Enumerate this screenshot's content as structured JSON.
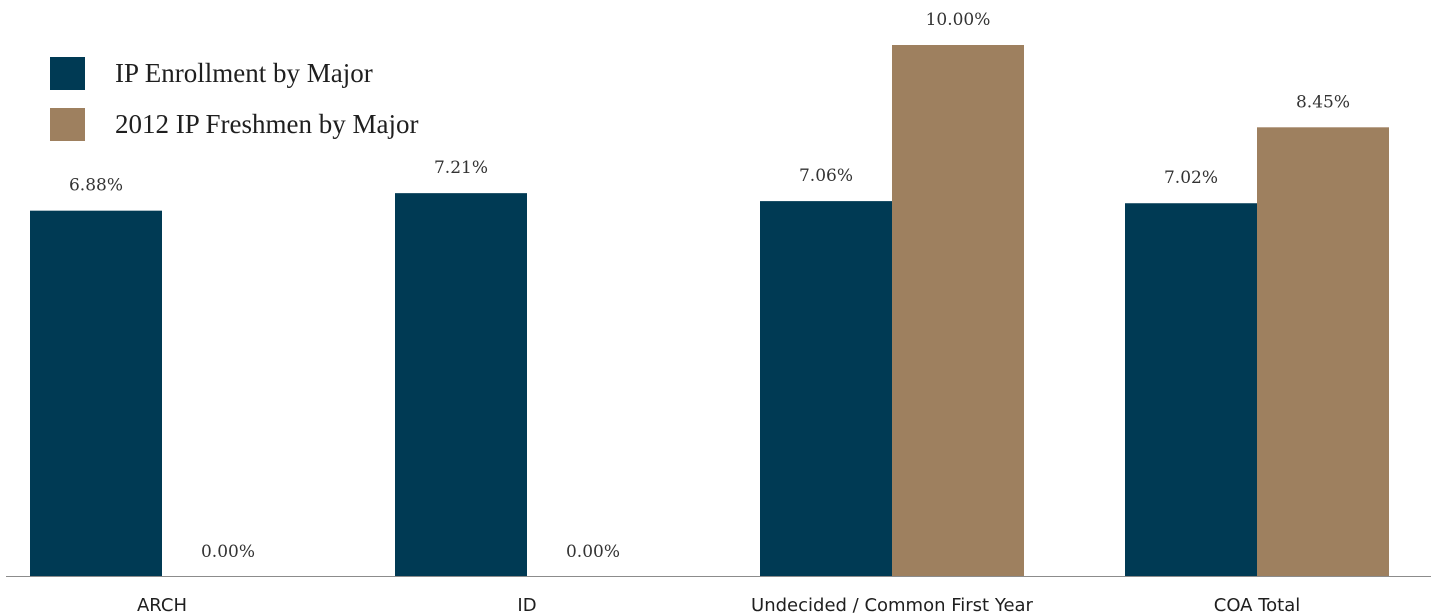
{
  "chart_data": {
    "type": "bar",
    "title": "",
    "xlabel": "",
    "ylabel": "",
    "ylim": [
      0,
      10.5
    ],
    "grid": false,
    "legend_position": "top-left",
    "categories": [
      "ARCH",
      "ID",
      "Undecided / Common First Year",
      "COA Total"
    ],
    "series": [
      {
        "name": "IP Enrollment by Major",
        "color": "#003a54",
        "values": [
          6.88,
          7.21,
          7.06,
          7.02
        ],
        "labels": [
          "6.88%",
          "7.21%",
          "7.06%",
          "7.02%"
        ]
      },
      {
        "name": "2012 IP Freshmen by Major",
        "color": "#9e805f",
        "values": [
          0,
          0,
          10.0,
          8.45
        ],
        "labels": [
          "0.00%",
          "0.00%",
          "10.00%",
          "8.45%"
        ]
      }
    ]
  }
}
